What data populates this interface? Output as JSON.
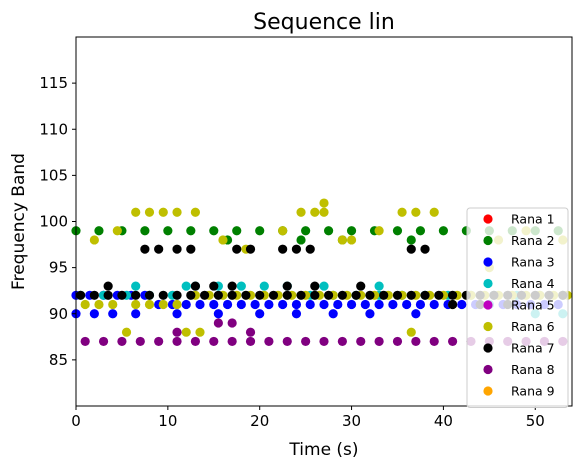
{
  "chart_data": {
    "type": "scatter",
    "title": "Sequence lin",
    "xlabel": "Time (s)",
    "ylabel": "Frequency Band",
    "xlim": [
      0,
      54
    ],
    "ylim": [
      80,
      120
    ],
    "xticks": [
      0,
      10,
      20,
      30,
      40,
      50
    ],
    "yticks": [
      85,
      90,
      95,
      100,
      105,
      110,
      115
    ],
    "legend_position": "lower right",
    "series": [
      {
        "name": "Rana 1",
        "color": "#ff0000",
        "x": [],
        "y": []
      },
      {
        "name": "Rana 2",
        "color": "#008000",
        "x": [
          0,
          2.5,
          5,
          7.5,
          10,
          12.5,
          15,
          17.5,
          20,
          22.5,
          25,
          27.5,
          30,
          32.5,
          35,
          37.5,
          40,
          42.5,
          45,
          47.5,
          50,
          52.5,
          24.5,
          36.5,
          16.5,
          29
        ],
        "y": [
          99,
          99,
          99,
          99,
          99,
          99,
          99,
          99,
          99,
          99,
          99,
          99,
          99,
          99,
          99,
          99,
          99,
          99,
          99,
          99,
          99,
          99,
          98,
          98,
          98,
          98
        ]
      },
      {
        "name": "Rana 3",
        "color": "#0000ff",
        "x": [
          0,
          1.5,
          3,
          4.5,
          6,
          7.5,
          9,
          10.5,
          12,
          13.5,
          15,
          16.5,
          18,
          19.5,
          21,
          22.5,
          24,
          25.5,
          27,
          28.5,
          30,
          31.5,
          33,
          34.5,
          36,
          37.5,
          39,
          40.5,
          42,
          43.5,
          45,
          46.5,
          48,
          49.5,
          51,
          52.5,
          0,
          2,
          4,
          6.5,
          11,
          15.5,
          20,
          24,
          28,
          32,
          37
        ],
        "y": [
          92,
          92,
          92,
          92,
          92,
          92,
          91,
          91,
          91,
          91,
          91,
          91,
          91,
          91,
          91,
          91,
          91,
          91,
          91,
          91,
          91,
          91,
          91,
          91,
          91,
          91,
          91,
          91,
          91,
          91,
          91,
          91,
          91,
          91,
          91,
          91,
          90,
          90,
          90,
          90,
          90,
          90,
          90,
          90,
          90,
          90,
          90
        ]
      },
      {
        "name": "Rana 4",
        "color": "#00bfbf",
        "x": [
          0.5,
          3,
          5.5,
          8,
          10.5,
          13,
          15.5,
          18,
          20.5,
          23,
          25.5,
          28,
          30.5,
          33,
          35.5,
          38,
          40.5,
          43,
          45.5,
          48,
          50.5,
          53,
          6.5,
          12,
          27,
          33,
          45,
          50,
          53
        ],
        "y": [
          92,
          92,
          92,
          92,
          92,
          93,
          93,
          93,
          93,
          93,
          92,
          92,
          92,
          92,
          92,
          92,
          92,
          92,
          92,
          92,
          92,
          92,
          93,
          93,
          93,
          93,
          91,
          90,
          90
        ]
      },
      {
        "name": "Rana 5",
        "color": "#bf00bf",
        "x": [],
        "y": []
      },
      {
        "name": "Rana 6",
        "color": "#bfbf00",
        "x": [
          1,
          2.5,
          4,
          6.5,
          8,
          9.5,
          11,
          13,
          14.5,
          16,
          17.5,
          19,
          20.5,
          22,
          23.5,
          25,
          26.5,
          28,
          29.5,
          31,
          32.5,
          34,
          35.5,
          37,
          38.5,
          40,
          41.5,
          43,
          44.5,
          46,
          47.5,
          49,
          50.5,
          52,
          53.5,
          6.5,
          8,
          9.5,
          11,
          13,
          24.5,
          26,
          27,
          35.5,
          37,
          39,
          27,
          2,
          4.5,
          16,
          18.5,
          22.5,
          29,
          30,
          33,
          46,
          49,
          53,
          5.5,
          12,
          13.5,
          36.5,
          41,
          45
        ],
        "y": [
          91,
          91,
          91,
          91,
          91,
          91,
          91,
          92,
          92,
          92,
          92,
          92,
          92,
          92,
          92,
          92,
          92,
          92,
          92,
          92,
          92,
          92,
          92,
          92,
          92,
          92,
          92,
          92,
          92,
          92,
          92,
          92,
          92,
          92,
          92,
          101,
          101,
          101,
          101,
          101,
          101,
          101,
          101,
          101,
          101,
          101,
          102,
          98,
          99,
          98,
          97,
          99,
          98,
          98,
          99,
          98,
          99,
          98,
          88,
          88,
          88,
          88,
          91,
          95
        ]
      },
      {
        "name": "Rana 7",
        "color": "#000000",
        "x": [
          0.5,
          2,
          3.5,
          5,
          6.5,
          8,
          9.5,
          11,
          12.5,
          14,
          15.5,
          17,
          18.5,
          20,
          21.5,
          23,
          24.5,
          26,
          27.5,
          29,
          30.5,
          32,
          33.5,
          35,
          36.5,
          38,
          39.5,
          41,
          42.5,
          44,
          45.5,
          47,
          48.5,
          50,
          51.5,
          53,
          7.5,
          9,
          11,
          12.5,
          17.5,
          19,
          22.5,
          24,
          25.5,
          36.5,
          38,
          3.5,
          13,
          15,
          17,
          23,
          26,
          31,
          41,
          44,
          47
        ],
        "y": [
          92,
          92,
          92,
          92,
          92,
          92,
          92,
          92,
          92,
          92,
          92,
          92,
          92,
          92,
          92,
          92,
          92,
          92,
          92,
          92,
          92,
          92,
          92,
          92,
          92,
          92,
          92,
          92,
          92,
          92,
          92,
          92,
          92,
          92,
          92,
          92,
          97,
          97,
          97,
          97,
          97,
          97,
          97,
          97,
          97,
          97,
          97,
          93,
          93,
          93,
          93,
          93,
          93,
          93,
          91,
          91,
          91
        ]
      },
      {
        "name": "Rana 8",
        "color": "#800080",
        "x": [
          1,
          3,
          5,
          7,
          9,
          11,
          13,
          15,
          17,
          19,
          21,
          23,
          25,
          27,
          29,
          31,
          33,
          35,
          37,
          39,
          41,
          43,
          45,
          47,
          49,
          51,
          53,
          11,
          15.5,
          17,
          19
        ],
        "y": [
          87,
          87,
          87,
          87,
          87,
          87,
          87,
          87,
          87,
          87,
          87,
          87,
          87,
          87,
          87,
          87,
          87,
          87,
          87,
          87,
          87,
          87,
          87,
          87,
          87,
          87,
          87,
          88,
          89,
          89,
          88
        ]
      },
      {
        "name": "Rana 9",
        "color": "#ffa500",
        "x": [],
        "y": []
      }
    ]
  }
}
